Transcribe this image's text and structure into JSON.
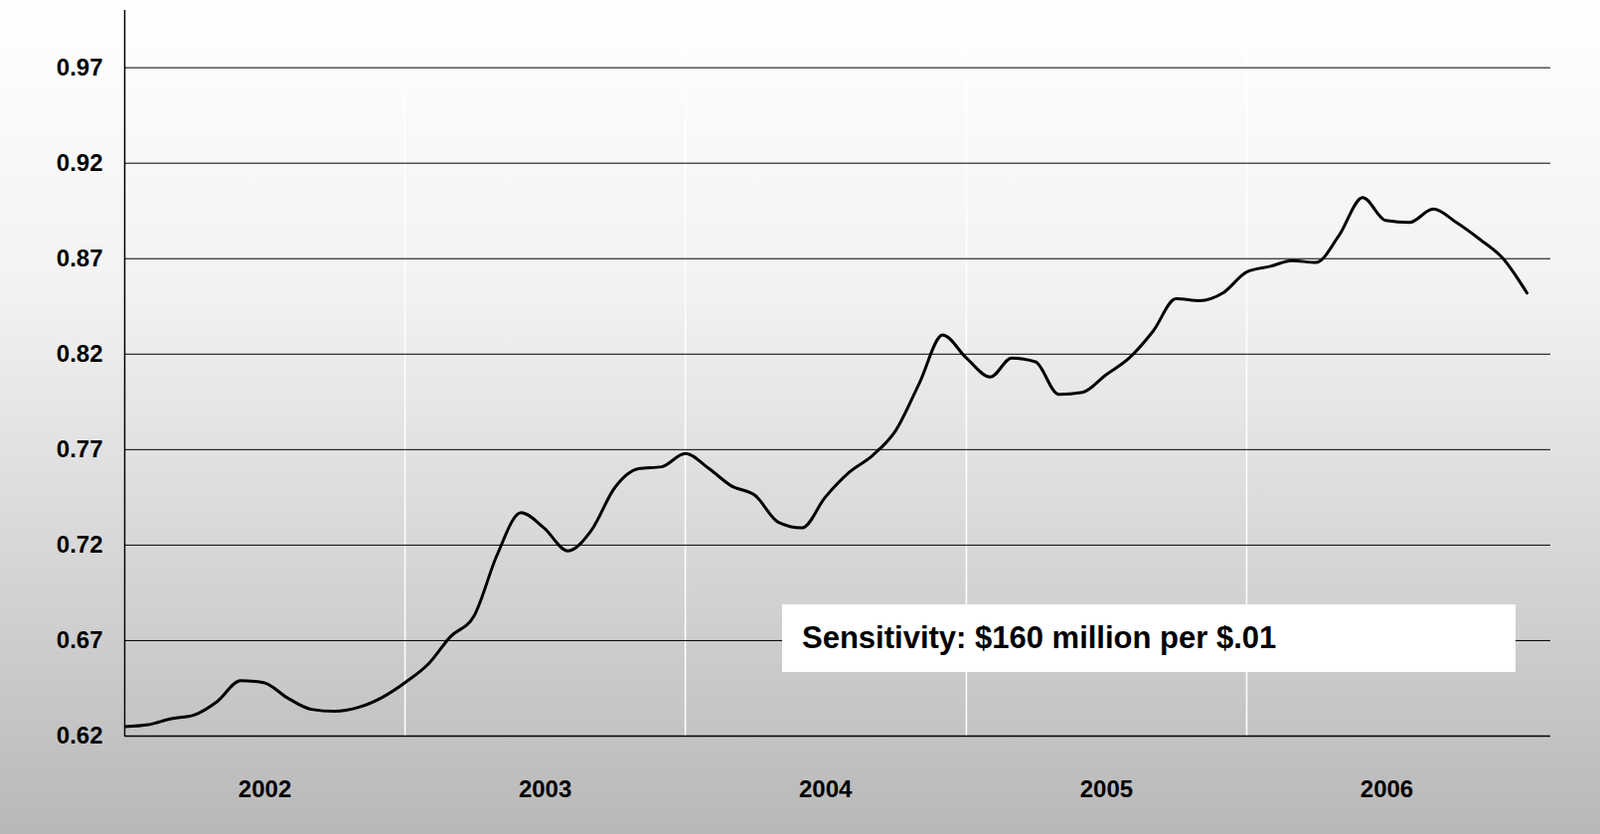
{
  "chart_data": {
    "type": "line",
    "x": [
      "2002-01",
      "2002-02",
      "2002-03",
      "2002-04",
      "2002-05",
      "2002-06",
      "2002-07",
      "2002-08",
      "2002-09",
      "2002-10",
      "2002-11",
      "2002-12",
      "2003-01",
      "2003-02",
      "2003-03",
      "2003-04",
      "2003-05",
      "2003-06",
      "2003-07",
      "2003-08",
      "2003-09",
      "2003-10",
      "2003-11",
      "2003-12",
      "2004-01",
      "2004-02",
      "2004-03",
      "2004-04",
      "2004-05",
      "2004-06",
      "2004-07",
      "2004-08",
      "2004-09",
      "2004-10",
      "2004-11",
      "2004-12",
      "2005-01",
      "2005-02",
      "2005-03",
      "2005-04",
      "2005-05",
      "2005-06",
      "2005-07",
      "2005-08",
      "2005-09",
      "2005-10",
      "2005-11",
      "2005-12",
      "2006-01",
      "2006-02",
      "2006-03",
      "2006-04",
      "2006-05",
      "2006-06",
      "2006-07",
      "2006-08",
      "2006-09",
      "2006-10",
      "2006-11",
      "2006-12",
      "2007-01"
    ],
    "values": [
      0.625,
      0.626,
      0.629,
      0.631,
      0.638,
      0.649,
      0.648,
      0.64,
      0.634,
      0.633,
      0.635,
      0.64,
      0.648,
      0.658,
      0.672,
      0.683,
      0.715,
      0.737,
      0.729,
      0.717,
      0.728,
      0.75,
      0.76,
      0.761,
      0.768,
      0.76,
      0.751,
      0.746,
      0.732,
      0.729,
      0.745,
      0.758,
      0.767,
      0.78,
      0.805,
      0.83,
      0.818,
      0.808,
      0.818,
      0.816,
      0.799,
      0.8,
      0.809,
      0.818,
      0.832,
      0.849,
      0.848,
      0.852,
      0.863,
      0.866,
      0.869,
      0.868,
      0.882,
      0.902,
      0.89,
      0.889,
      0.896,
      0.889,
      0.88,
      0.87,
      0.852
    ],
    "color": "#000000",
    "annotation": "Sensitivity: $160 million per $.01",
    "xlim": [
      "2002-01",
      "2007-02"
    ],
    "xticks": [
      {
        "value": "2002-01",
        "label": "2002"
      },
      {
        "value": "2003-01",
        "label": "2003"
      },
      {
        "value": "2004-01",
        "label": "2004"
      },
      {
        "value": "2005-01",
        "label": "2005"
      },
      {
        "value": "2006-01",
        "label": "2006"
      }
    ],
    "ylim": [
      0.62,
      1.0
    ],
    "yticks": [
      0.62,
      0.67,
      0.72,
      0.77,
      0.82,
      0.87,
      0.92,
      0.97
    ],
    "grid": true
  }
}
